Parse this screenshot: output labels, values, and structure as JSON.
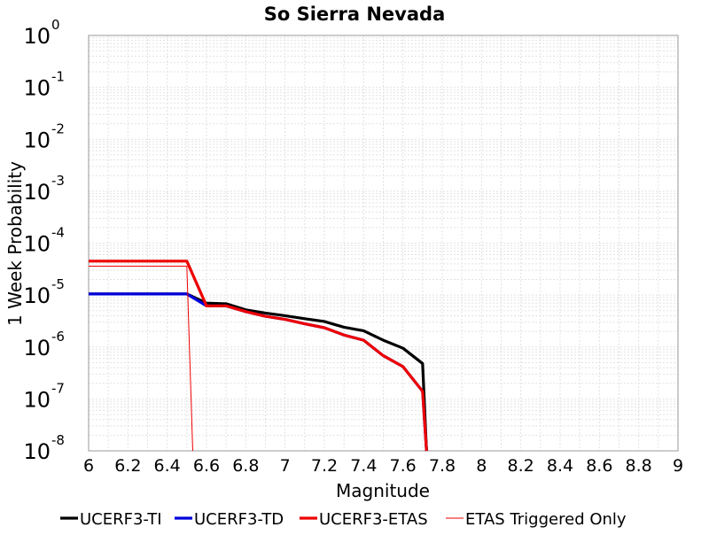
{
  "chart_data": {
    "type": "line",
    "title": "So Sierra Nevada",
    "xlabel": "Magnitude",
    "ylabel": "1 Week Probability",
    "xlim": [
      6,
      9
    ],
    "ylim": [
      1e-08,
      1
    ],
    "y_scale": "log",
    "grid": true,
    "legend_placement": "bottom",
    "x_ticks": [
      "6",
      "6.2",
      "6.4",
      "6.6",
      "6.8",
      "7",
      "7.2",
      "7.4",
      "7.6",
      "7.8",
      "8",
      "8.2",
      "8.4",
      "8.6",
      "8.8",
      "9"
    ],
    "y_ticks": [
      {
        "base": "10",
        "exp": "0"
      },
      {
        "base": "10",
        "exp": "-1"
      },
      {
        "base": "10",
        "exp": "-2"
      },
      {
        "base": "10",
        "exp": "-3"
      },
      {
        "base": "10",
        "exp": "-4"
      },
      {
        "base": "10",
        "exp": "-5"
      },
      {
        "base": "10",
        "exp": "-6"
      },
      {
        "base": "10",
        "exp": "-7"
      },
      {
        "base": "10",
        "exp": "-8"
      }
    ],
    "series": [
      {
        "name": "UCERF3-TI",
        "color": "#000000",
        "width": "thick",
        "points": [
          [
            6.0,
            1.05e-05
          ],
          [
            6.5,
            1.05e-05
          ],
          [
            6.6,
            7e-06
          ],
          [
            6.7,
            6.8e-06
          ],
          [
            6.8,
            5.2e-06
          ],
          [
            6.9,
            4.5e-06
          ],
          [
            7.0,
            4e-06
          ],
          [
            7.1,
            3.5e-06
          ],
          [
            7.2,
            3.1e-06
          ],
          [
            7.3,
            2.4e-06
          ],
          [
            7.4,
            2.05e-06
          ],
          [
            7.5,
            1.35e-06
          ],
          [
            7.6,
            9.5e-07
          ],
          [
            7.7,
            4.8e-07
          ],
          [
            7.72,
            1e-08
          ]
        ]
      },
      {
        "name": "UCERF3-TD",
        "color": "#0000dd",
        "width": "thick",
        "points": [
          [
            6.0,
            1.05e-05
          ],
          [
            6.5,
            1.05e-05
          ],
          [
            6.6,
            6.2e-06
          ],
          [
            6.7,
            6.2e-06
          ],
          [
            6.8,
            4.8e-06
          ],
          [
            6.9,
            3.9e-06
          ],
          [
            7.0,
            3.4e-06
          ],
          [
            7.1,
            2.8e-06
          ],
          [
            7.2,
            2.35e-06
          ],
          [
            7.3,
            1.7e-06
          ],
          [
            7.4,
            1.35e-06
          ],
          [
            7.5,
            6.8e-07
          ],
          [
            7.6,
            4.2e-07
          ],
          [
            7.7,
            1.4e-07
          ],
          [
            7.72,
            1e-08
          ]
        ]
      },
      {
        "name": "UCERF3-ETAS",
        "color": "#ee0000",
        "width": "thick",
        "points": [
          [
            6.0,
            4.5e-05
          ],
          [
            6.5,
            4.5e-05
          ],
          [
            6.6,
            6.2e-06
          ],
          [
            6.7,
            6.2e-06
          ],
          [
            6.8,
            4.8e-06
          ],
          [
            6.9,
            3.9e-06
          ],
          [
            7.0,
            3.4e-06
          ],
          [
            7.1,
            2.8e-06
          ],
          [
            7.2,
            2.35e-06
          ],
          [
            7.3,
            1.7e-06
          ],
          [
            7.4,
            1.35e-06
          ],
          [
            7.5,
            6.8e-07
          ],
          [
            7.6,
            4.2e-07
          ],
          [
            7.7,
            1.4e-07
          ],
          [
            7.72,
            1e-08
          ]
        ]
      },
      {
        "name": "ETAS Triggered Only",
        "color": "#ee0000",
        "width": "thin",
        "points": [
          [
            6.0,
            3.6e-05
          ],
          [
            6.5,
            3.6e-05
          ],
          [
            6.53,
            1e-08
          ]
        ]
      }
    ]
  }
}
